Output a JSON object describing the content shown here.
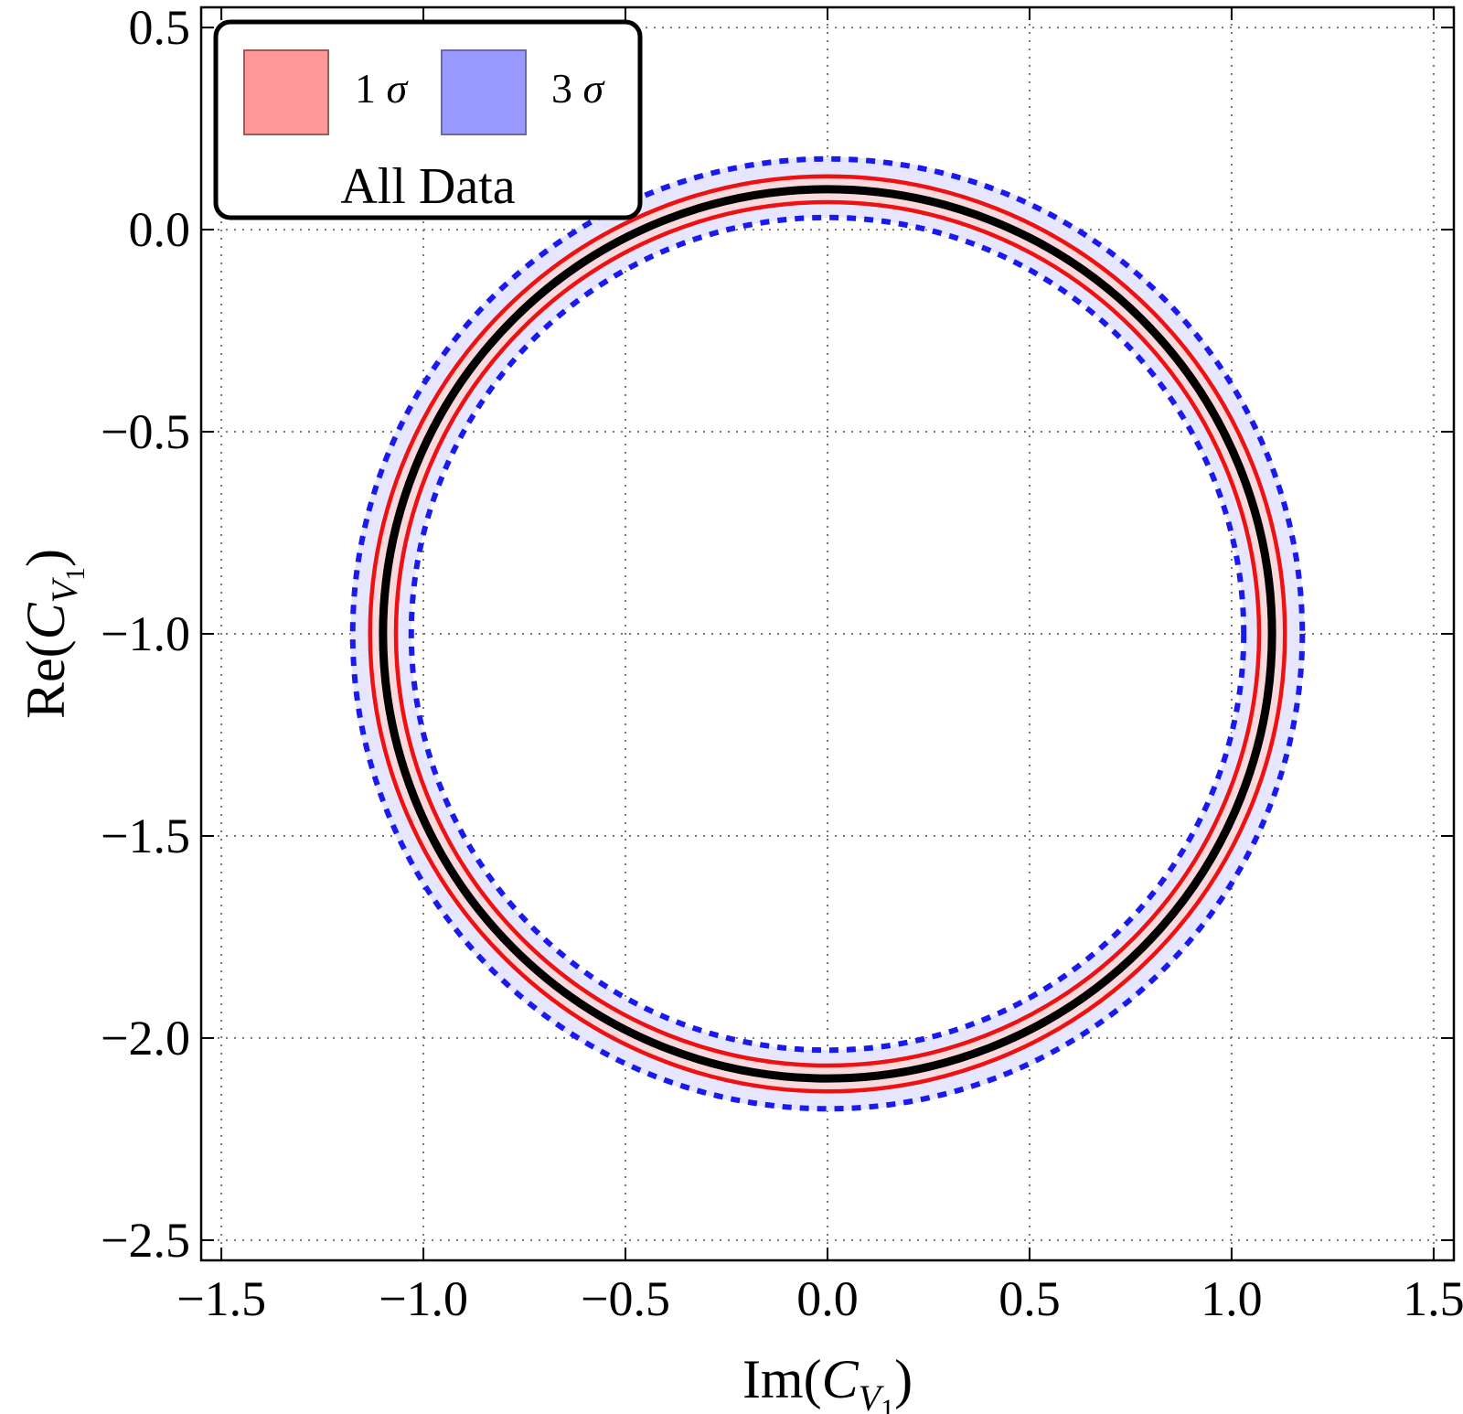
{
  "chart_data": {
    "type": "contour",
    "x_axis": {
      "base": "Im",
      "symbol": "C",
      "subscript": "V",
      "subsubscript": "1",
      "range": [
        -1.55,
        1.55
      ],
      "ticks": [
        -1.5,
        -1.0,
        -0.5,
        0.0,
        0.5,
        1.0,
        1.5
      ],
      "tick_labels": [
        "−1.5",
        "−1.0",
        "−0.5",
        "0.0",
        "0.5",
        "1.0",
        "1.5"
      ]
    },
    "y_axis": {
      "base": "Re",
      "symbol": "C",
      "subscript": "V",
      "subsubscript": "1",
      "range": [
        -2.55,
        0.55
      ],
      "ticks": [
        -2.5,
        -2.0,
        -1.5,
        -1.0,
        -0.5,
        0.0,
        0.5
      ],
      "tick_labels": [
        "−2.5",
        "−2.0",
        "−1.5",
        "−1.0",
        "−0.5",
        "0.0",
        "0.5"
      ]
    },
    "grid": true,
    "center": {
      "x": 0.0,
      "y": -1.0
    },
    "contours": [
      {
        "level": "3 sigma band",
        "r_inner": 1.03,
        "r_outer": 1.18,
        "color": "#e6e6ff",
        "kind": "band"
      },
      {
        "level": "3 sigma outer",
        "r": 1.175,
        "color": "#1a1aee",
        "kind": "dashed"
      },
      {
        "level": "3 sigma inner",
        "r": 1.03,
        "color": "#1a1aee",
        "kind": "dashed"
      },
      {
        "level": "1 sigma band",
        "r_inner": 1.065,
        "r_outer": 1.135,
        "color": "#f7d9de",
        "kind": "band"
      },
      {
        "level": "1 sigma outer",
        "r": 1.132,
        "color": "#ee1111",
        "kind": "solid"
      },
      {
        "level": "1 sigma inner",
        "r": 1.068,
        "color": "#ee1111",
        "kind": "solid"
      },
      {
        "level": "best fit",
        "r": 1.1,
        "color": "#000000",
        "kind": "solid-thick"
      }
    ],
    "legend": {
      "position": "top-left",
      "title": "All Data",
      "entries": [
        {
          "number": "1",
          "symbol": "σ",
          "swatch_color": "#ff9999",
          "swatch_border": "#a05a5a"
        },
        {
          "number": "3",
          "symbol": "σ",
          "swatch_color": "#9999ff",
          "swatch_border": "#6a6aa6"
        }
      ]
    }
  }
}
